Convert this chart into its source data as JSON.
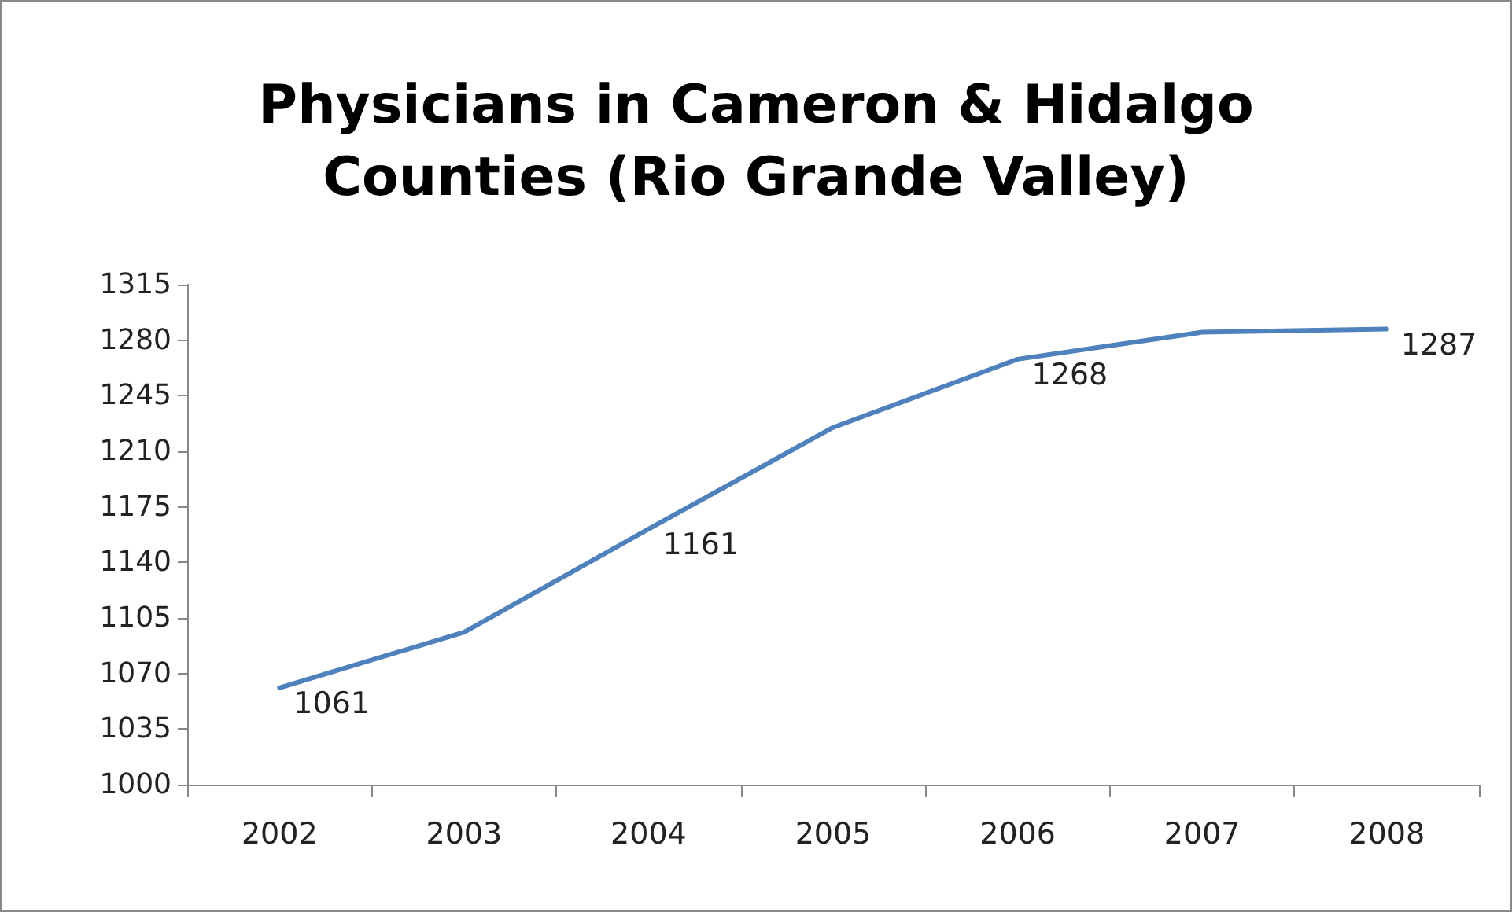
{
  "chart_data": {
    "type": "line",
    "title": "Physicians in Cameron & Hidalgo\nCounties (Rio Grande Valley)",
    "categories": [
      "2002",
      "2003",
      "2004",
      "2005",
      "2006",
      "2007",
      "2008"
    ],
    "series": [
      {
        "color": "#4f81bd",
        "values": [
          1061,
          1096,
          1161,
          1225,
          1268,
          1285,
          1287
        ],
        "value_labels": [
          "1061",
          null,
          "1161",
          null,
          "1268",
          null,
          "1287"
        ]
      }
    ],
    "ylim": [
      1000,
      1315
    ],
    "yticks": [
      1000,
      1035,
      1070,
      1105,
      1140,
      1175,
      1210,
      1245,
      1280,
      1315
    ],
    "grid": false,
    "marker": "none",
    "line_style": "solid"
  }
}
